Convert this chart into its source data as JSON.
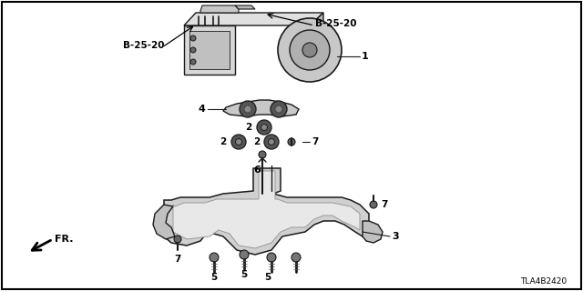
{
  "bg_color": "#ffffff",
  "fig_width": 6.4,
  "fig_height": 3.2,
  "dpi": 100,
  "part_code_left": "B-25-20",
  "part_code_right": "B-25-20",
  "diagram_code": "TLA4B2420",
  "fr_label": "FR.",
  "border_color": "#000000",
  "line_color": "#1a1a1a",
  "text_color": "#000000",
  "gray_fill": "#c8c8c8",
  "dark_fill": "#444444",
  "mid_fill": "#888888"
}
